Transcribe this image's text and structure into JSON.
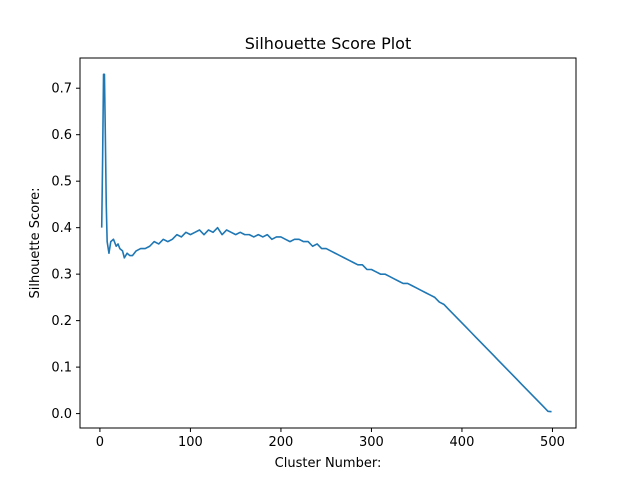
{
  "chart_data": {
    "type": "line",
    "title": "Silhouette Score Plot",
    "xlabel": "Cluster Number:",
    "ylabel": "Silhouette Score:",
    "xlim": [
      -22,
      526
    ],
    "ylim": [
      -0.031,
      0.765
    ],
    "xticks": [
      0,
      100,
      200,
      300,
      400,
      500
    ],
    "xtick_labels": [
      "0",
      "100",
      "200",
      "300",
      "400",
      "500"
    ],
    "yticks": [
      0.0,
      0.1,
      0.2,
      0.3,
      0.4,
      0.5,
      0.6,
      0.7
    ],
    "ytick_labels": [
      "0.0",
      "0.1",
      "0.2",
      "0.3",
      "0.4",
      "0.5",
      "0.6",
      "0.7"
    ],
    "grid": false,
    "line_color": "#1f77b4",
    "series": [
      {
        "x": [
          2,
          3,
          4,
          5,
          6,
          7,
          8,
          10,
          12,
          15,
          18,
          20,
          22,
          25,
          27,
          30,
          33,
          36,
          40,
          45,
          50,
          55,
          60,
          65,
          70,
          75,
          80,
          85,
          90,
          95,
          100,
          105,
          110,
          115,
          120,
          125,
          130,
          135,
          140,
          145,
          150,
          155,
          160,
          165,
          170,
          175,
          180,
          185,
          190,
          195,
          200,
          205,
          210,
          215,
          220,
          225,
          230,
          235,
          240,
          245,
          250,
          255,
          260,
          265,
          270,
          275,
          280,
          285,
          290,
          295,
          300,
          305,
          310,
          315,
          320,
          325,
          330,
          335,
          340,
          345,
          350,
          355,
          360,
          365,
          370,
          375,
          380,
          385,
          390,
          395,
          400,
          405,
          410,
          415,
          420,
          425,
          430,
          435,
          440,
          445,
          450,
          455,
          460,
          465,
          470,
          475,
          480,
          485,
          490,
          495,
          499
        ],
        "y": [
          0.4,
          0.55,
          0.73,
          0.73,
          0.6,
          0.45,
          0.37,
          0.345,
          0.37,
          0.375,
          0.36,
          0.365,
          0.355,
          0.35,
          0.335,
          0.345,
          0.34,
          0.34,
          0.35,
          0.355,
          0.355,
          0.36,
          0.37,
          0.365,
          0.375,
          0.37,
          0.375,
          0.385,
          0.38,
          0.39,
          0.385,
          0.39,
          0.395,
          0.385,
          0.395,
          0.39,
          0.4,
          0.385,
          0.395,
          0.39,
          0.385,
          0.39,
          0.385,
          0.385,
          0.38,
          0.385,
          0.38,
          0.385,
          0.375,
          0.38,
          0.38,
          0.375,
          0.37,
          0.375,
          0.375,
          0.37,
          0.37,
          0.36,
          0.365,
          0.355,
          0.355,
          0.35,
          0.345,
          0.34,
          0.335,
          0.33,
          0.325,
          0.32,
          0.32,
          0.31,
          0.31,
          0.305,
          0.3,
          0.3,
          0.295,
          0.29,
          0.285,
          0.28,
          0.28,
          0.275,
          0.27,
          0.265,
          0.26,
          0.255,
          0.25,
          0.24,
          0.235,
          0.225,
          0.215,
          0.205,
          0.195,
          0.185,
          0.175,
          0.165,
          0.155,
          0.145,
          0.135,
          0.125,
          0.115,
          0.105,
          0.095,
          0.085,
          0.075,
          0.065,
          0.055,
          0.045,
          0.035,
          0.025,
          0.015,
          0.005,
          0.004
        ]
      }
    ]
  }
}
